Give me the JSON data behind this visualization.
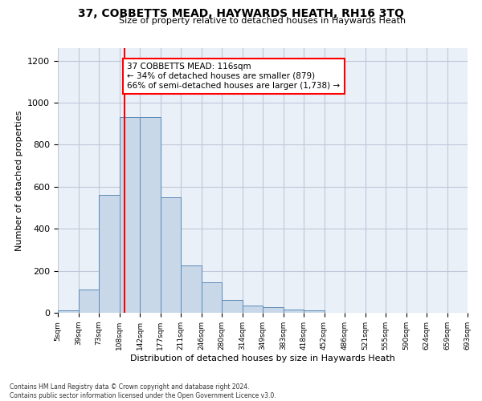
{
  "title": "37, COBBETTS MEAD, HAYWARDS HEATH, RH16 3TQ",
  "subtitle": "Size of property relative to detached houses in Haywards Heath",
  "xlabel": "Distribution of detached houses by size in Haywards Heath",
  "ylabel": "Number of detached properties",
  "bar_color": "#c8d8e8",
  "bar_edge_color": "#5a8ab8",
  "bin_labels": [
    "5sqm",
    "39sqm",
    "73sqm",
    "108sqm",
    "142sqm",
    "177sqm",
    "211sqm",
    "246sqm",
    "280sqm",
    "314sqm",
    "349sqm",
    "383sqm",
    "418sqm",
    "452sqm",
    "486sqm",
    "521sqm",
    "555sqm",
    "590sqm",
    "624sqm",
    "659sqm",
    "693sqm"
  ],
  "bar_values": [
    10,
    110,
    560,
    930,
    930,
    550,
    225,
    145,
    60,
    35,
    25,
    15,
    10,
    0,
    0,
    0,
    0,
    0,
    0,
    0
  ],
  "ylim": [
    0,
    1260
  ],
  "yticks": [
    0,
    200,
    400,
    600,
    800,
    1000,
    1200
  ],
  "annotation_text": "37 COBBETTS MEAD: 116sqm\n← 34% of detached houses are smaller (879)\n66% of semi-detached houses are larger (1,738) →",
  "annotation_box_color": "white",
  "annotation_box_edge_color": "red",
  "grid_color": "#c0c8d8",
  "background_color": "#eaf0f8",
  "footer": "Contains HM Land Registry data © Crown copyright and database right 2024.\nContains public sector information licensed under the Open Government Licence v3.0."
}
